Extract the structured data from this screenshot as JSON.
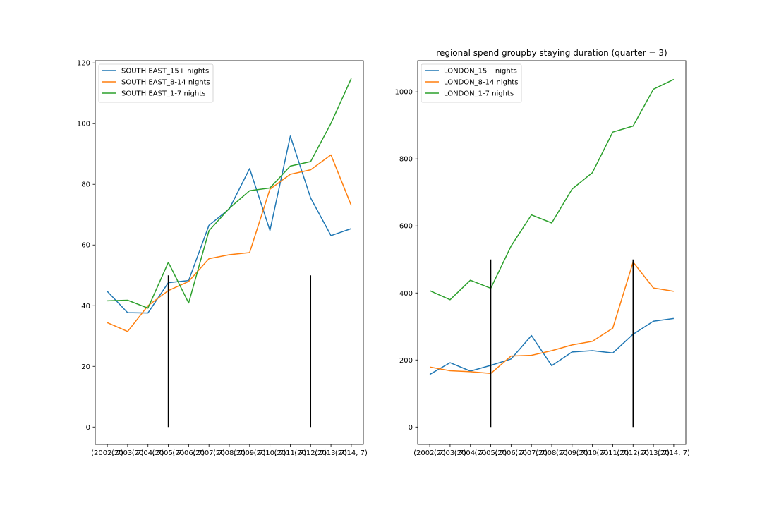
{
  "figure": {
    "x_tick_labels": [
      "(2002, 7)",
      "(2003, 7)",
      "(2004, 7)",
      "(2005, 7)",
      "(2006, 7)",
      "(2007, 7)",
      "(2008, 7)",
      "(2009, 7)",
      "(2010, 7)",
      "(2011, 7)",
      "(2012, 7)",
      "(2013, 7)",
      "(2014, 7)"
    ]
  },
  "chart_data": [
    {
      "type": "line",
      "title": "",
      "xlabel": "",
      "ylabel": "",
      "categories": [
        "(2002, 7)",
        "(2003, 7)",
        "(2004, 7)",
        "(2005, 7)",
        "(2006, 7)",
        "(2007, 7)",
        "(2008, 7)",
        "(2009, 7)",
        "(2010, 7)",
        "(2011, 7)",
        "(2012, 7)",
        "(2013, 7)",
        "(2014, 7)"
      ],
      "ylim": [
        -5.75,
        120.75
      ],
      "y_ticks": [
        0,
        20,
        40,
        60,
        80,
        100,
        120
      ],
      "legend": "top-left",
      "grid": false,
      "series": [
        {
          "name": "SOUTH EAST_15+ nights",
          "color": "#1f77b4",
          "values": [
            44.7,
            37.7,
            37.6,
            47.6,
            48.3,
            66.5,
            71.9,
            85.2,
            64.8,
            95.9,
            75.5,
            63.1,
            65.4
          ]
        },
        {
          "name": "SOUTH EAST_8-14 nights",
          "color": "#ff7f0e",
          "values": [
            34.4,
            31.5,
            40.0,
            45.0,
            48.0,
            55.5,
            56.8,
            57.5,
            78.4,
            83.3,
            84.8,
            89.7,
            73.0
          ]
        },
        {
          "name": "SOUTH EAST_1-7 nights",
          "color": "#2ca02c",
          "values": [
            41.6,
            41.8,
            39.2,
            54.3,
            40.9,
            64.7,
            72.1,
            77.9,
            78.8,
            86.0,
            87.5,
            100.1,
            114.9
          ]
        }
      ],
      "vlines": [
        {
          "x_index": 3,
          "y_from": 0,
          "y_to": 50,
          "color": "#000000"
        },
        {
          "x_index": 10,
          "y_from": 0,
          "y_to": 50,
          "color": "#000000"
        }
      ]
    },
    {
      "type": "line",
      "title": "regional spend groupby staying duration (quarter = 3)",
      "xlabel": "",
      "ylabel": "",
      "categories": [
        "(2002, 7)",
        "(2003, 7)",
        "(2004, 7)",
        "(2005, 7)",
        "(2006, 7)",
        "(2007, 7)",
        "(2008, 7)",
        "(2009, 7)",
        "(2010, 7)",
        "(2011, 7)",
        "(2012, 7)",
        "(2013, 7)",
        "(2014, 7)"
      ],
      "ylim": [
        -52,
        1093
      ],
      "y_ticks": [
        0,
        200,
        400,
        600,
        800,
        1000
      ],
      "legend": "top-left",
      "grid": false,
      "series": [
        {
          "name": "LONDON_15+ nights",
          "color": "#1f77b4",
          "values": [
            157,
            192,
            167,
            184,
            203,
            273,
            183,
            224,
            228,
            221,
            277,
            316,
            324
          ]
        },
        {
          "name": "LONDON_8-14 nights",
          "color": "#ff7f0e",
          "values": [
            179,
            168,
            165,
            160,
            212,
            214,
            228,
            245,
            256,
            295,
            492,
            415,
            405
          ]
        },
        {
          "name": "LONDON_1-7 nights",
          "color": "#2ca02c",
          "values": [
            407,
            380,
            438,
            414,
            540,
            633,
            609,
            710,
            759,
            880,
            898,
            1008,
            1037
          ]
        }
      ],
      "vlines": [
        {
          "x_index": 3,
          "y_from": 0,
          "y_to": 500,
          "color": "#000000"
        },
        {
          "x_index": 10,
          "y_from": 0,
          "y_to": 500,
          "color": "#000000"
        }
      ]
    }
  ]
}
